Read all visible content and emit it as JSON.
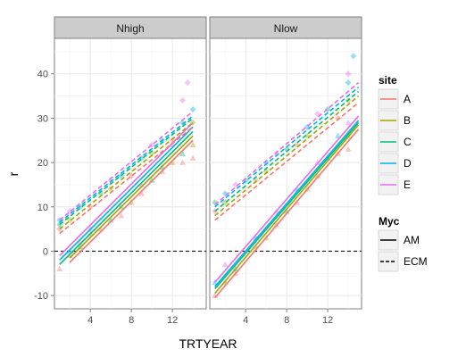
{
  "chart_data": {
    "type": "scatter",
    "xlabel": "TRTYEAR",
    "ylabel": "r",
    "xlim": [
      0.5,
      15.3
    ],
    "ylim": [
      -13,
      48
    ],
    "x_ticks": [
      "4",
      "8",
      "12"
    ],
    "y_ticks": [
      "-10",
      "0",
      "10",
      "20",
      "30",
      "40"
    ],
    "panels": [
      "Nhigh",
      "Nlow"
    ],
    "reference_line": {
      "y": 0,
      "style": "dashed"
    },
    "grid": true,
    "legend_placement": "right",
    "legends": [
      {
        "title": "site",
        "entries": [
          {
            "label": "A",
            "color": "#F8766D"
          },
          {
            "label": "B",
            "color": "#A3A500"
          },
          {
            "label": "C",
            "color": "#00BF7D"
          },
          {
            "label": "D",
            "color": "#00B0F6"
          },
          {
            "label": "E",
            "color": "#E76BF3"
          }
        ]
      },
      {
        "title": "Myc",
        "entries": [
          {
            "label": "AM",
            "linetype": "solid"
          },
          {
            "label": "ECM",
            "linetype": "dashed"
          }
        ]
      }
    ],
    "fitted_lines": [
      {
        "panel": "Nhigh",
        "site": "A",
        "myc": "AM",
        "x": [
          2,
          14
        ],
        "y": [
          -2.5,
          25
        ]
      },
      {
        "panel": "Nhigh",
        "site": "B",
        "myc": "AM",
        "x": [
          2,
          14
        ],
        "y": [
          -1.5,
          26
        ]
      },
      {
        "panel": "Nhigh",
        "site": "C",
        "myc": "AM",
        "x": [
          1,
          14
        ],
        "y": [
          -3,
          27
        ]
      },
      {
        "panel": "Nhigh",
        "site": "D",
        "myc": "AM",
        "x": [
          1,
          14
        ],
        "y": [
          -2,
          28
        ]
      },
      {
        "panel": "Nhigh",
        "site": "E",
        "myc": "AM",
        "x": [
          1,
          14
        ],
        "y": [
          -1,
          29
        ]
      },
      {
        "panel": "Nhigh",
        "site": "A",
        "myc": "ECM",
        "x": [
          1,
          14
        ],
        "y": [
          4,
          28
        ]
      },
      {
        "panel": "Nhigh",
        "site": "B",
        "myc": "ECM",
        "x": [
          1,
          14
        ],
        "y": [
          5,
          29
        ]
      },
      {
        "panel": "Nhigh",
        "site": "C",
        "myc": "ECM",
        "x": [
          1,
          14
        ],
        "y": [
          6,
          30
        ]
      },
      {
        "panel": "Nhigh",
        "site": "D",
        "myc": "ECM",
        "x": [
          1,
          14
        ],
        "y": [
          6.5,
          30.5
        ]
      },
      {
        "panel": "Nhigh",
        "site": "E",
        "myc": "ECM",
        "x": [
          1,
          14
        ],
        "y": [
          7,
          31.5
        ]
      },
      {
        "panel": "Nlow",
        "site": "A",
        "myc": "AM",
        "x": [
          1,
          15
        ],
        "y": [
          -10.5,
          27.5
        ]
      },
      {
        "panel": "Nlow",
        "site": "B",
        "myc": "AM",
        "x": [
          1,
          15
        ],
        "y": [
          -9.5,
          28.5
        ]
      },
      {
        "panel": "Nlow",
        "site": "C",
        "myc": "AM",
        "x": [
          1,
          15
        ],
        "y": [
          -8.5,
          29
        ]
      },
      {
        "panel": "Nlow",
        "site": "D",
        "myc": "AM",
        "x": [
          1,
          15
        ],
        "y": [
          -8,
          29.5
        ]
      },
      {
        "panel": "Nlow",
        "site": "E",
        "myc": "AM",
        "x": [
          1,
          15
        ],
        "y": [
          -7,
          30.5
        ]
      },
      {
        "panel": "Nlow",
        "site": "A",
        "myc": "ECM",
        "x": [
          1,
          15
        ],
        "y": [
          7,
          33.5
        ]
      },
      {
        "panel": "Nlow",
        "site": "B",
        "myc": "ECM",
        "x": [
          1,
          15
        ],
        "y": [
          8,
          35
        ]
      },
      {
        "panel": "Nlow",
        "site": "C",
        "myc": "ECM",
        "x": [
          1,
          15
        ],
        "y": [
          9,
          36
        ]
      },
      {
        "panel": "Nlow",
        "site": "D",
        "myc": "ECM",
        "x": [
          1,
          15
        ],
        "y": [
          10,
          37
        ]
      },
      {
        "panel": "Nlow",
        "site": "E",
        "myc": "ECM",
        "x": [
          1,
          15
        ],
        "y": [
          10.5,
          38
        ]
      }
    ],
    "points": [
      {
        "panel": "Nhigh",
        "x": 1,
        "y": -4,
        "site": "A",
        "shape": "triangle"
      },
      {
        "panel": "Nhigh",
        "x": 2,
        "y": -1,
        "site": "A",
        "shape": "triangle"
      },
      {
        "panel": "Nhigh",
        "x": 3,
        "y": 2,
        "site": "A",
        "shape": "triangle"
      },
      {
        "panel": "Nhigh",
        "x": 5,
        "y": 5,
        "site": "A",
        "shape": "triangle"
      },
      {
        "panel": "Nhigh",
        "x": 7,
        "y": 8,
        "site": "A",
        "shape": "triangle"
      },
      {
        "panel": "Nhigh",
        "x": 9,
        "y": 13,
        "site": "A",
        "shape": "triangle"
      },
      {
        "panel": "Nhigh",
        "x": 11,
        "y": 18,
        "site": "A",
        "shape": "triangle"
      },
      {
        "panel": "Nhigh",
        "x": 13,
        "y": 20,
        "site": "A",
        "shape": "triangle"
      },
      {
        "panel": "Nhigh",
        "x": 14,
        "y": 21,
        "site": "A",
        "shape": "triangle"
      },
      {
        "panel": "Nhigh",
        "x": 4,
        "y": 4,
        "site": "B",
        "shape": "triangle"
      },
      {
        "panel": "Nhigh",
        "x": 8,
        "y": 11,
        "site": "B",
        "shape": "triangle"
      },
      {
        "panel": "Nhigh",
        "x": 12,
        "y": 20,
        "site": "B",
        "shape": "triangle"
      },
      {
        "panel": "Nhigh",
        "x": 14,
        "y": 24,
        "site": "B",
        "shape": "triangle"
      },
      {
        "panel": "Nhigh",
        "x": 3,
        "y": 1,
        "site": "C",
        "shape": "triangle"
      },
      {
        "panel": "Nhigh",
        "x": 6,
        "y": 7,
        "site": "C",
        "shape": "triangle"
      },
      {
        "panel": "Nhigh",
        "x": 10,
        "y": 16,
        "site": "C",
        "shape": "triangle"
      },
      {
        "panel": "Nhigh",
        "x": 13,
        "y": 22,
        "site": "C",
        "shape": "triangle"
      },
      {
        "panel": "Nhigh",
        "x": 2,
        "y": 0,
        "site": "D",
        "shape": "triangle"
      },
      {
        "panel": "Nhigh",
        "x": 7,
        "y": 10,
        "site": "D",
        "shape": "triangle"
      },
      {
        "panel": "Nhigh",
        "x": 11,
        "y": 19,
        "site": "D",
        "shape": "triangle"
      },
      {
        "panel": "Nhigh",
        "x": 4,
        "y": 5,
        "site": "E",
        "shape": "triangle"
      },
      {
        "panel": "Nhigh",
        "x": 9,
        "y": 15,
        "site": "E",
        "shape": "triangle"
      },
      {
        "panel": "Nhigh",
        "x": 12,
        "y": 24,
        "site": "E",
        "shape": "triangle"
      },
      {
        "panel": "Nhigh",
        "x": 1,
        "y": 5,
        "site": "A",
        "shape": "diamond"
      },
      {
        "panel": "Nhigh",
        "x": 4,
        "y": 10,
        "site": "A",
        "shape": "diamond"
      },
      {
        "panel": "Nhigh",
        "x": 8,
        "y": 17,
        "site": "A",
        "shape": "diamond"
      },
      {
        "panel": "Nhigh",
        "x": 12,
        "y": 25,
        "site": "A",
        "shape": "diamond"
      },
      {
        "panel": "Nhigh",
        "x": 2,
        "y": 7,
        "site": "B",
        "shape": "diamond"
      },
      {
        "panel": "Nhigh",
        "x": 6,
        "y": 14,
        "site": "B",
        "shape": "diamond"
      },
      {
        "panel": "Nhigh",
        "x": 10,
        "y": 22,
        "site": "B",
        "shape": "diamond"
      },
      {
        "panel": "Nhigh",
        "x": 14,
        "y": 29,
        "site": "B",
        "shape": "diamond"
      },
      {
        "panel": "Nhigh",
        "x": 1,
        "y": 6,
        "site": "C",
        "shape": "diamond"
      },
      {
        "panel": "Nhigh",
        "x": 5,
        "y": 13,
        "site": "C",
        "shape": "diamond"
      },
      {
        "panel": "Nhigh",
        "x": 9,
        "y": 21,
        "site": "C",
        "shape": "diamond"
      },
      {
        "panel": "Nhigh",
        "x": 13,
        "y": 29,
        "site": "C",
        "shape": "diamond"
      },
      {
        "panel": "Nhigh",
        "x": 1,
        "y": 7,
        "site": "D",
        "shape": "diamond"
      },
      {
        "panel": "Nhigh",
        "x": 3,
        "y": 10,
        "site": "D",
        "shape": "diamond"
      },
      {
        "panel": "Nhigh",
        "x": 7,
        "y": 17,
        "site": "D",
        "shape": "diamond"
      },
      {
        "panel": "Nhigh",
        "x": 11,
        "y": 25,
        "site": "D",
        "shape": "diamond"
      },
      {
        "panel": "Nhigh",
        "x": 14,
        "y": 32,
        "site": "D",
        "shape": "diamond"
      },
      {
        "panel": "Nhigh",
        "x": 2,
        "y": 9,
        "site": "E",
        "shape": "diamond"
      },
      {
        "panel": "Nhigh",
        "x": 6,
        "y": 16,
        "site": "E",
        "shape": "diamond"
      },
      {
        "panel": "Nhigh",
        "x": 10,
        "y": 24,
        "site": "E",
        "shape": "diamond"
      },
      {
        "panel": "Nhigh",
        "x": 13,
        "y": 34,
        "site": "E",
        "shape": "diamond"
      },
      {
        "panel": "Nhigh",
        "x": 13.5,
        "y": 38,
        "site": "E",
        "shape": "diamond"
      },
      {
        "panel": "Nlow",
        "x": 1,
        "y": -10,
        "site": "A",
        "shape": "triangle"
      },
      {
        "panel": "Nlow",
        "x": 3,
        "y": -5,
        "site": "A",
        "shape": "triangle"
      },
      {
        "panel": "Nlow",
        "x": 5,
        "y": 1,
        "site": "A",
        "shape": "triangle"
      },
      {
        "panel": "Nlow",
        "x": 7,
        "y": 6,
        "site": "A",
        "shape": "triangle"
      },
      {
        "panel": "Nlow",
        "x": 9,
        "y": 11,
        "site": "A",
        "shape": "triangle"
      },
      {
        "panel": "Nlow",
        "x": 11,
        "y": 17,
        "site": "A",
        "shape": "triangle"
      },
      {
        "panel": "Nlow",
        "x": 13,
        "y": 22,
        "site": "A",
        "shape": "triangle"
      },
      {
        "panel": "Nlow",
        "x": 14,
        "y": 23,
        "site": "A",
        "shape": "triangle"
      },
      {
        "panel": "Nlow",
        "x": 2,
        "y": -7,
        "site": "B",
        "shape": "triangle"
      },
      {
        "panel": "Nlow",
        "x": 6,
        "y": 3,
        "site": "B",
        "shape": "triangle"
      },
      {
        "panel": "Nlow",
        "x": 10,
        "y": 14,
        "site": "B",
        "shape": "triangle"
      },
      {
        "panel": "Nlow",
        "x": 14,
        "y": 26,
        "site": "B",
        "shape": "triangle"
      },
      {
        "panel": "Nlow",
        "x": 3,
        "y": -4,
        "site": "C",
        "shape": "triangle"
      },
      {
        "panel": "Nlow",
        "x": 8,
        "y": 9,
        "site": "C",
        "shape": "triangle"
      },
      {
        "panel": "Nlow",
        "x": 12,
        "y": 21,
        "site": "C",
        "shape": "triangle"
      },
      {
        "panel": "Nlow",
        "x": 1,
        "y": -7,
        "site": "D",
        "shape": "triangle"
      },
      {
        "panel": "Nlow",
        "x": 5,
        "y": 3,
        "site": "D",
        "shape": "triangle"
      },
      {
        "panel": "Nlow",
        "x": 9,
        "y": 14,
        "site": "D",
        "shape": "triangle"
      },
      {
        "panel": "Nlow",
        "x": 13,
        "y": 26,
        "site": "D",
        "shape": "triangle"
      },
      {
        "panel": "Nlow",
        "x": 2,
        "y": -3,
        "site": "E",
        "shape": "triangle"
      },
      {
        "panel": "Nlow",
        "x": 7,
        "y": 9,
        "site": "E",
        "shape": "triangle"
      },
      {
        "panel": "Nlow",
        "x": 11,
        "y": 20,
        "site": "E",
        "shape": "triangle"
      },
      {
        "panel": "Nlow",
        "x": 14,
        "y": 29,
        "site": "E",
        "shape": "triangle"
      },
      {
        "panel": "Nlow",
        "x": 1,
        "y": 9,
        "site": "A",
        "shape": "diamond"
      },
      {
        "panel": "Nlow",
        "x": 5,
        "y": 16,
        "site": "A",
        "shape": "diamond"
      },
      {
        "panel": "Nlow",
        "x": 9,
        "y": 24,
        "site": "A",
        "shape": "diamond"
      },
      {
        "panel": "Nlow",
        "x": 13,
        "y": 30,
        "site": "A",
        "shape": "diamond"
      },
      {
        "panel": "Nlow",
        "x": 2,
        "y": 11,
        "site": "B",
        "shape": "diamond"
      },
      {
        "panel": "Nlow",
        "x": 6,
        "y": 18,
        "site": "B",
        "shape": "diamond"
      },
      {
        "panel": "Nlow",
        "x": 10,
        "y": 26,
        "site": "B",
        "shape": "diamond"
      },
      {
        "panel": "Nlow",
        "x": 14,
        "y": 34,
        "site": "B",
        "shape": "diamond"
      },
      {
        "panel": "Nlow",
        "x": 1,
        "y": 11,
        "site": "C",
        "shape": "diamond"
      },
      {
        "panel": "Nlow",
        "x": 4,
        "y": 16,
        "site": "C",
        "shape": "diamond"
      },
      {
        "panel": "Nlow",
        "x": 8,
        "y": 23,
        "site": "C",
        "shape": "diamond"
      },
      {
        "panel": "Nlow",
        "x": 12,
        "y": 32,
        "site": "C",
        "shape": "diamond"
      },
      {
        "panel": "Nlow",
        "x": 2,
        "y": 13,
        "site": "D",
        "shape": "diamond"
      },
      {
        "panel": "Nlow",
        "x": 6,
        "y": 20,
        "site": "D",
        "shape": "diamond"
      },
      {
        "panel": "Nlow",
        "x": 10,
        "y": 28,
        "site": "D",
        "shape": "diamond"
      },
      {
        "panel": "Nlow",
        "x": 14,
        "y": 38,
        "site": "D",
        "shape": "diamond"
      },
      {
        "panel": "Nlow",
        "x": 14.5,
        "y": 44,
        "site": "D",
        "shape": "diamond"
      },
      {
        "panel": "Nlow",
        "x": 3,
        "y": 15,
        "site": "E",
        "shape": "diamond"
      },
      {
        "panel": "Nlow",
        "x": 7,
        "y": 22,
        "site": "E",
        "shape": "diamond"
      },
      {
        "panel": "Nlow",
        "x": 11,
        "y": 31,
        "site": "E",
        "shape": "diamond"
      },
      {
        "panel": "Nlow",
        "x": 14,
        "y": 40,
        "site": "E",
        "shape": "diamond"
      }
    ]
  }
}
